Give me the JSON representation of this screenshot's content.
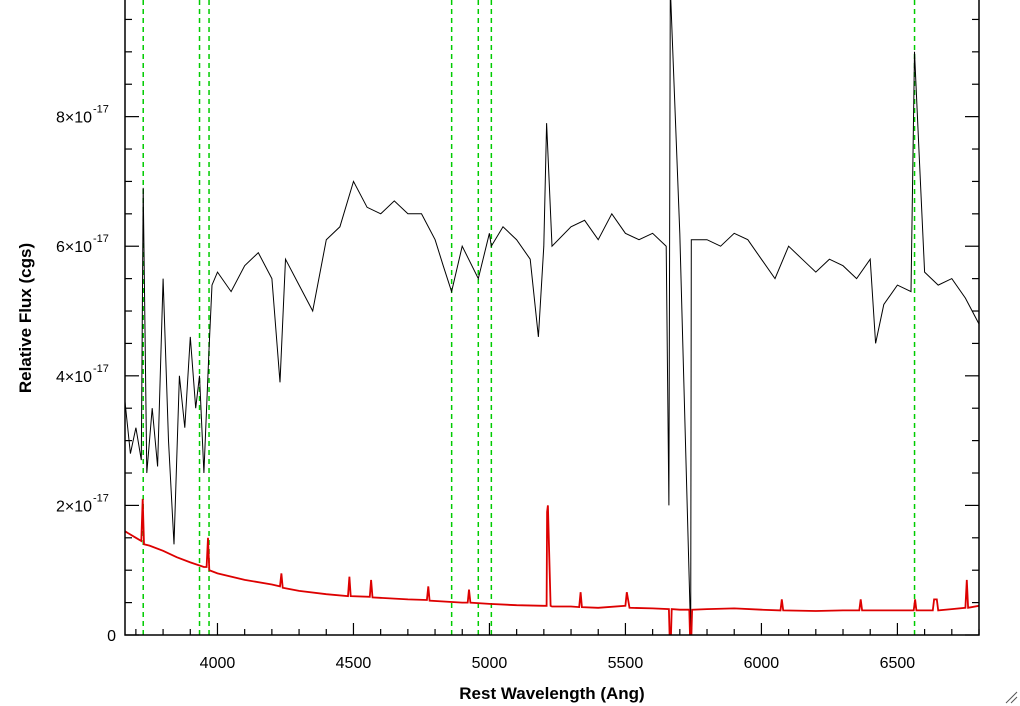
{
  "chart_data": {
    "type": "line",
    "title": "",
    "xlabel": "Rest Wavelength (Ang)",
    "ylabel": "Relative Flux (cgs)",
    "xlim": [
      3660,
      6800
    ],
    "ylim": [
      0,
      9.8e-17
    ],
    "x_ticks": [
      4000,
      4500,
      5000,
      5500,
      6000,
      6500
    ],
    "x_tick_labels": [
      "4000",
      "4500",
      "5000",
      "5500",
      "6000",
      "6500"
    ],
    "y_ticks": [
      0,
      2e-17,
      4e-17,
      6e-17,
      8e-17
    ],
    "y_tick_labels": [
      {
        "mantissa": "0",
        "exponent": ""
      },
      {
        "mantissa": "2×10",
        "exponent": "-17"
      },
      {
        "mantissa": "4×10",
        "exponent": "-17"
      },
      {
        "mantissa": "6×10",
        "exponent": "-17"
      },
      {
        "mantissa": "8×10",
        "exponent": "-17"
      }
    ],
    "vertical_lines": [
      3727,
      3934,
      3969,
      4861,
      4959,
      5007,
      6563
    ],
    "colors": {
      "spectrum": "#000000",
      "error": "#dd0000",
      "vlines": "#00cc00",
      "axes": "#000000"
    },
    "series": [
      {
        "role": "spectrum",
        "x": [
          3660,
          3680,
          3700,
          3720,
          3727,
          3740,
          3760,
          3780,
          3800,
          3820,
          3840,
          3860,
          3880,
          3900,
          3920,
          3934,
          3950,
          3969,
          3980,
          4000,
          4050,
          4100,
          4150,
          4200,
          4230,
          4250,
          4300,
          4350,
          4400,
          4450,
          4500,
          4550,
          4600,
          4650,
          4700,
          4750,
          4800,
          4830,
          4861,
          4900,
          4959,
          5000,
          5007,
          5050,
          5100,
          5150,
          5180,
          5200,
          5210,
          5230,
          5300,
          5350,
          5400,
          5450,
          5500,
          5550,
          5600,
          5650,
          5660,
          5665,
          5700,
          5740,
          5742,
          5800,
          5850,
          5900,
          5950,
          6000,
          6050,
          6100,
          6150,
          6200,
          6250,
          6300,
          6350,
          6400,
          6420,
          6450,
          6500,
          6550,
          6563,
          6580,
          6600,
          6650,
          6700,
          6750,
          6800
        ],
        "y": [
          3.6e-17,
          2.8e-17,
          3.2e-17,
          2.7e-17,
          6.9e-17,
          2.5e-17,
          3.5e-17,
          2.6e-17,
          5.5e-17,
          3e-17,
          1.4e-17,
          4e-17,
          3.2e-17,
          4.6e-17,
          3.5e-17,
          4e-17,
          2.5e-17,
          4.4e-17,
          5.4e-17,
          5.6e-17,
          5.3e-17,
          5.7e-17,
          5.9e-17,
          5.5e-17,
          3.9e-17,
          5.8e-17,
          5.4e-17,
          5e-17,
          6.1e-17,
          6.3e-17,
          7e-17,
          6.6e-17,
          6.5e-17,
          6.7e-17,
          6.5e-17,
          6.5e-17,
          6.1e-17,
          5.7e-17,
          5.3e-17,
          6e-17,
          5.5e-17,
          6.2e-17,
          6e-17,
          6.3e-17,
          6.1e-17,
          5.8e-17,
          4.6e-17,
          6e-17,
          7.9e-17,
          6e-17,
          6.3e-17,
          6.4e-17,
          6.1e-17,
          6.5e-17,
          6.2e-17,
          6.1e-17,
          6.2e-17,
          6e-17,
          2e-17,
          1e-16,
          6.2e-17,
          0.0,
          6.1e-17,
          6.1e-17,
          6e-17,
          6.2e-17,
          6.1e-17,
          5.8e-17,
          5.5e-17,
          6e-17,
          5.8e-17,
          5.6e-17,
          5.8e-17,
          5.7e-17,
          5.5e-17,
          5.8e-17,
          4.5e-17,
          5.1e-17,
          5.4e-17,
          5.3e-17,
          9e-17,
          7.4e-17,
          5.6e-17,
          5.4e-17,
          5.5e-17,
          5.2e-17,
          4.8e-17
        ]
      },
      {
        "role": "error",
        "x": [
          3660,
          3700,
          3720,
          3725,
          3730,
          3750,
          3800,
          3850,
          3900,
          3950,
          3960,
          3965,
          3970,
          4000,
          4100,
          4200,
          4230,
          4235,
          4240,
          4300,
          4400,
          4480,
          4485,
          4490,
          4560,
          4565,
          4570,
          4700,
          4770,
          4775,
          4780,
          4900,
          4920,
          4925,
          4930,
          5000,
          5100,
          5200,
          5210,
          5212,
          5215,
          5225,
          5230,
          5300,
          5330,
          5335,
          5340,
          5400,
          5500,
          5505,
          5515,
          5600,
          5660,
          5665,
          5670,
          5700,
          5735,
          5740,
          5745,
          5800,
          5900,
          6000,
          6070,
          6075,
          6080,
          6200,
          6300,
          6360,
          6365,
          6370,
          6400,
          6500,
          6560,
          6565,
          6570,
          6630,
          6635,
          6645,
          6650,
          6700,
          6750,
          6755,
          6760,
          6800
        ],
        "y": [
          1.6e-17,
          1.5e-17,
          1.45e-17,
          2.1e-17,
          1.4e-17,
          1.38e-17,
          1.3e-17,
          1.2e-17,
          1.12e-17,
          1.05e-17,
          1.05e-17,
          1.5e-17,
          1e-17,
          9.5e-18,
          8.5e-18,
          7.8e-18,
          7.5e-18,
          9.5e-18,
          7.3e-18,
          6.8e-18,
          6.3e-18,
          6e-18,
          9e-18,
          6e-18,
          5.9e-18,
          8.5e-18,
          5.8e-18,
          5.5e-18,
          5.4e-18,
          7.5e-18,
          5.3e-18,
          5e-18,
          5e-18,
          7e-18,
          5e-18,
          4.8e-18,
          4.6e-18,
          4.5e-18,
          4.5e-18,
          1.9e-17,
          2e-17,
          4.5e-18,
          4.4e-18,
          4.4e-18,
          4.3e-18,
          6.6e-18,
          4.3e-18,
          4.2e-18,
          4.5e-18,
          6.6e-18,
          4.2e-18,
          4.1e-18,
          4e-18,
          -4e-18,
          4e-18,
          3.9e-18,
          3.9e-18,
          -4e-18,
          3.9e-18,
          4e-18,
          4.1e-18,
          3.9e-18,
          3.8e-18,
          5.5e-18,
          3.8e-18,
          3.7e-18,
          3.8e-18,
          3.8e-18,
          5.5e-18,
          3.8e-18,
          3.8e-18,
          3.8e-18,
          3.8e-18,
          5.5e-18,
          3.8e-18,
          3.8e-18,
          5.5e-18,
          5.5e-18,
          3.8e-18,
          4e-18,
          4.2e-18,
          8.5e-18,
          4.2e-18,
          4.5e-18
        ]
      }
    ]
  }
}
